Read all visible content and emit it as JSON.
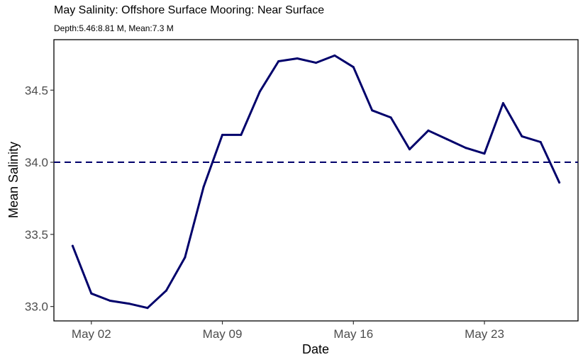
{
  "chart_data": {
    "type": "line",
    "title": "May Salinity: Offshore Surface Mooring: Near Surface",
    "subtitle": "Depth:5.46:8.81 M, Mean:7.3 M",
    "xlabel": "Date",
    "ylabel": "Mean Salinity",
    "xlim": [
      "2023-04-30",
      "2023-05-28"
    ],
    "ylim": [
      32.9,
      34.85
    ],
    "x_ticks": [
      {
        "value": "2023-05-02",
        "label": "May 02"
      },
      {
        "value": "2023-05-09",
        "label": "May 09"
      },
      {
        "value": "2023-05-16",
        "label": "May 16"
      },
      {
        "value": "2023-05-23",
        "label": "May 23"
      }
    ],
    "y_ticks": [
      {
        "value": 33.0,
        "label": "33.0"
      },
      {
        "value": 33.5,
        "label": "33.5"
      },
      {
        "value": 34.0,
        "label": "34.0"
      },
      {
        "value": 34.5,
        "label": "34.5"
      }
    ],
    "reference_line": {
      "y": 34.0,
      "style": "dashed",
      "color": "#00006b"
    },
    "line_color": "#00006b",
    "grid": false,
    "series": [
      {
        "x": [
          "2023-05-01",
          "2023-05-02",
          "2023-05-03",
          "2023-05-04",
          "2023-05-05",
          "2023-05-06",
          "2023-05-07",
          "2023-05-08",
          "2023-05-09",
          "2023-05-10",
          "2023-05-11",
          "2023-05-12",
          "2023-05-13",
          "2023-05-14",
          "2023-05-15",
          "2023-05-16",
          "2023-05-17",
          "2023-05-18",
          "2023-05-19",
          "2023-05-20",
          "2023-05-21",
          "2023-05-22",
          "2023-05-23",
          "2023-05-24",
          "2023-05-25",
          "2023-05-26",
          "2023-05-27"
        ],
        "values": [
          33.42,
          33.09,
          33.04,
          33.02,
          32.99,
          33.11,
          33.34,
          33.83,
          34.19,
          34.19,
          34.49,
          34.7,
          34.72,
          34.69,
          34.74,
          34.66,
          34.36,
          34.31,
          34.09,
          34.22,
          34.16,
          34.1,
          34.06,
          34.41,
          34.18,
          34.14,
          33.86
        ]
      }
    ]
  }
}
